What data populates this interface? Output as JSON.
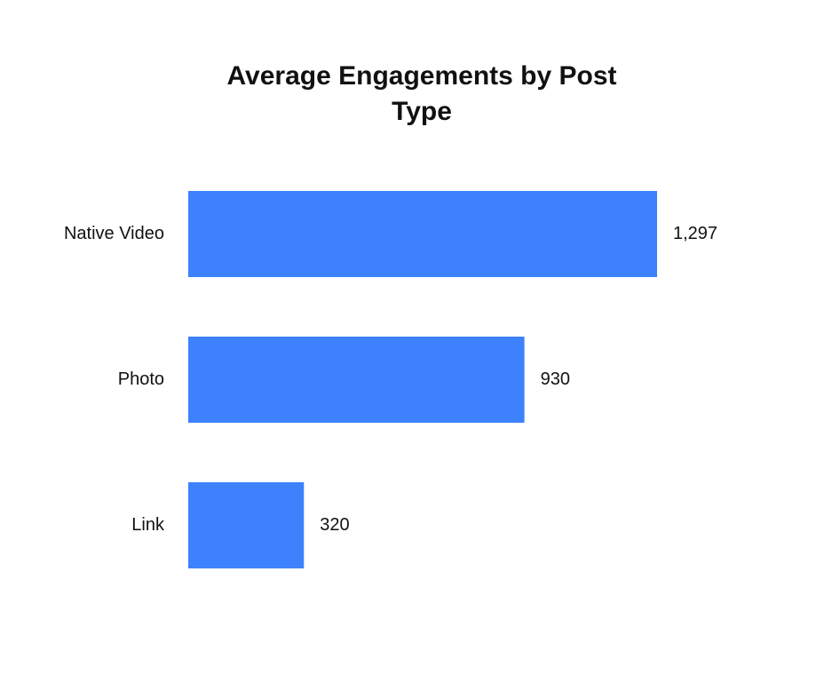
{
  "chart_data": {
    "type": "bar",
    "orientation": "horizontal",
    "title": "Average Engagements by Post Type",
    "categories": [
      "Native Video",
      "Photo",
      "Link"
    ],
    "values": [
      1297,
      930,
      320
    ],
    "value_labels": [
      "1,297",
      "930",
      "320"
    ],
    "color": "#3d82fc"
  }
}
